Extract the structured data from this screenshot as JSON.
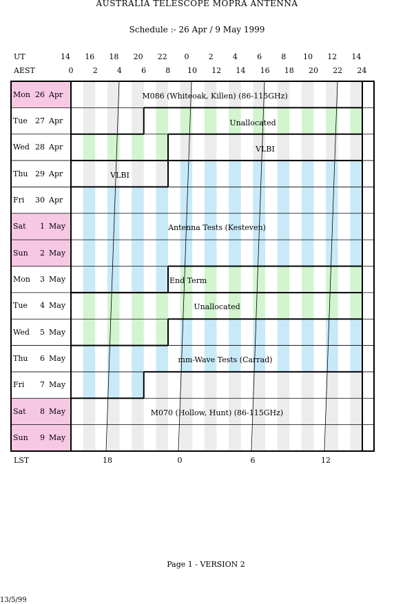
{
  "header": {
    "title": "AUSTRALIA TELESCOPE MOPRA ANTENNA",
    "subtitle": "Schedule :- 26 Apr / 9 May 1999"
  },
  "axes": {
    "ut_label": "UT",
    "aest_label": "AEST",
    "lst_label": "LST",
    "ut_ticks": [
      "14",
      "16",
      "18",
      "20",
      "22",
      "0",
      "2",
      "4",
      "6",
      "8",
      "10",
      "12",
      "14"
    ],
    "aest_ticks": [
      "0",
      "2",
      "4",
      "6",
      "8",
      "10",
      "12",
      "14",
      "16",
      "18",
      "20",
      "22",
      "24"
    ],
    "lst_ticks": [
      "18",
      "0",
      "6",
      "12"
    ]
  },
  "days": [
    {
      "name": "Mon",
      "date": "26",
      "month": "Apr",
      "weekend": true
    },
    {
      "name": "Tue",
      "date": "27",
      "month": "Apr",
      "weekend": false
    },
    {
      "name": "Wed",
      "date": "28",
      "month": "Apr",
      "weekend": false
    },
    {
      "name": "Thu",
      "date": "29",
      "month": "Apr",
      "weekend": false
    },
    {
      "name": "Fri",
      "date": "30",
      "month": "Apr",
      "weekend": false
    },
    {
      "name": "Sat",
      "date": "1",
      "month": "May",
      "weekend": true
    },
    {
      "name": "Sun",
      "date": "2",
      "month": "May",
      "weekend": true
    },
    {
      "name": "Mon",
      "date": "3",
      "month": "May",
      "weekend": false
    },
    {
      "name": "Tue",
      "date": "4",
      "month": "May",
      "weekend": false
    },
    {
      "name": "Wed",
      "date": "5",
      "month": "May",
      "weekend": false
    },
    {
      "name": "Thu",
      "date": "6",
      "month": "May",
      "weekend": false
    },
    {
      "name": "Fri",
      "date": "7",
      "month": "May",
      "weekend": false
    },
    {
      "name": "Sat",
      "date": "8",
      "month": "May",
      "weekend": true
    },
    {
      "name": "Sun",
      "date": "9",
      "month": "May",
      "weekend": true
    }
  ],
  "blocks": [
    {
      "label": "M086 (Whiteoak, Killen) (86-115GHz)",
      "start": {
        "day": 0,
        "hour": 0
      },
      "end": {
        "day": 1,
        "hour": 6
      },
      "stripe": "gray"
    },
    {
      "label": "Unallocated",
      "start": {
        "day": 1,
        "hour": 6
      },
      "end": {
        "day": 2,
        "hour": 8
      },
      "stripe": "green"
    },
    {
      "label": "VLBI",
      "start": {
        "day": 2,
        "hour": 8
      },
      "end": {
        "day": 3,
        "hour": 8
      },
      "stripe": "gray"
    },
    {
      "label": "Antenna Tests (Kesteven)",
      "start": {
        "day": 3,
        "hour": 8
      },
      "end": {
        "day": 7,
        "hour": 8
      },
      "stripe": "blue"
    },
    {
      "label": "End Term",
      "start": {
        "day": 7,
        "hour": 8
      },
      "end": {
        "day": 7,
        "hour": 24
      },
      "stripe": "green"
    },
    {
      "label": "Unallocated",
      "start": {
        "day": 8,
        "hour": 0
      },
      "end": {
        "day": 9,
        "hour": 8
      },
      "stripe": "green"
    },
    {
      "label": "mm-Wave Tests (Carrad)",
      "start": {
        "day": 9,
        "hour": 8
      },
      "end": {
        "day": 11,
        "hour": 6
      },
      "stripe": "blue"
    },
    {
      "label": "M070 (Hollow, Hunt) (86-115GHz)",
      "start": {
        "day": 11,
        "hour": 6
      },
      "end": {
        "day": 13,
        "hour": 24
      },
      "stripe": "gray"
    }
  ],
  "colors": {
    "weekend": "#f7c8e4",
    "gray": "#ececec",
    "green": "#d2f5d0",
    "blue": "#c8eaf8"
  },
  "footer": {
    "page": "Page 1 - VERSION 2",
    "date": "13/5/99"
  }
}
